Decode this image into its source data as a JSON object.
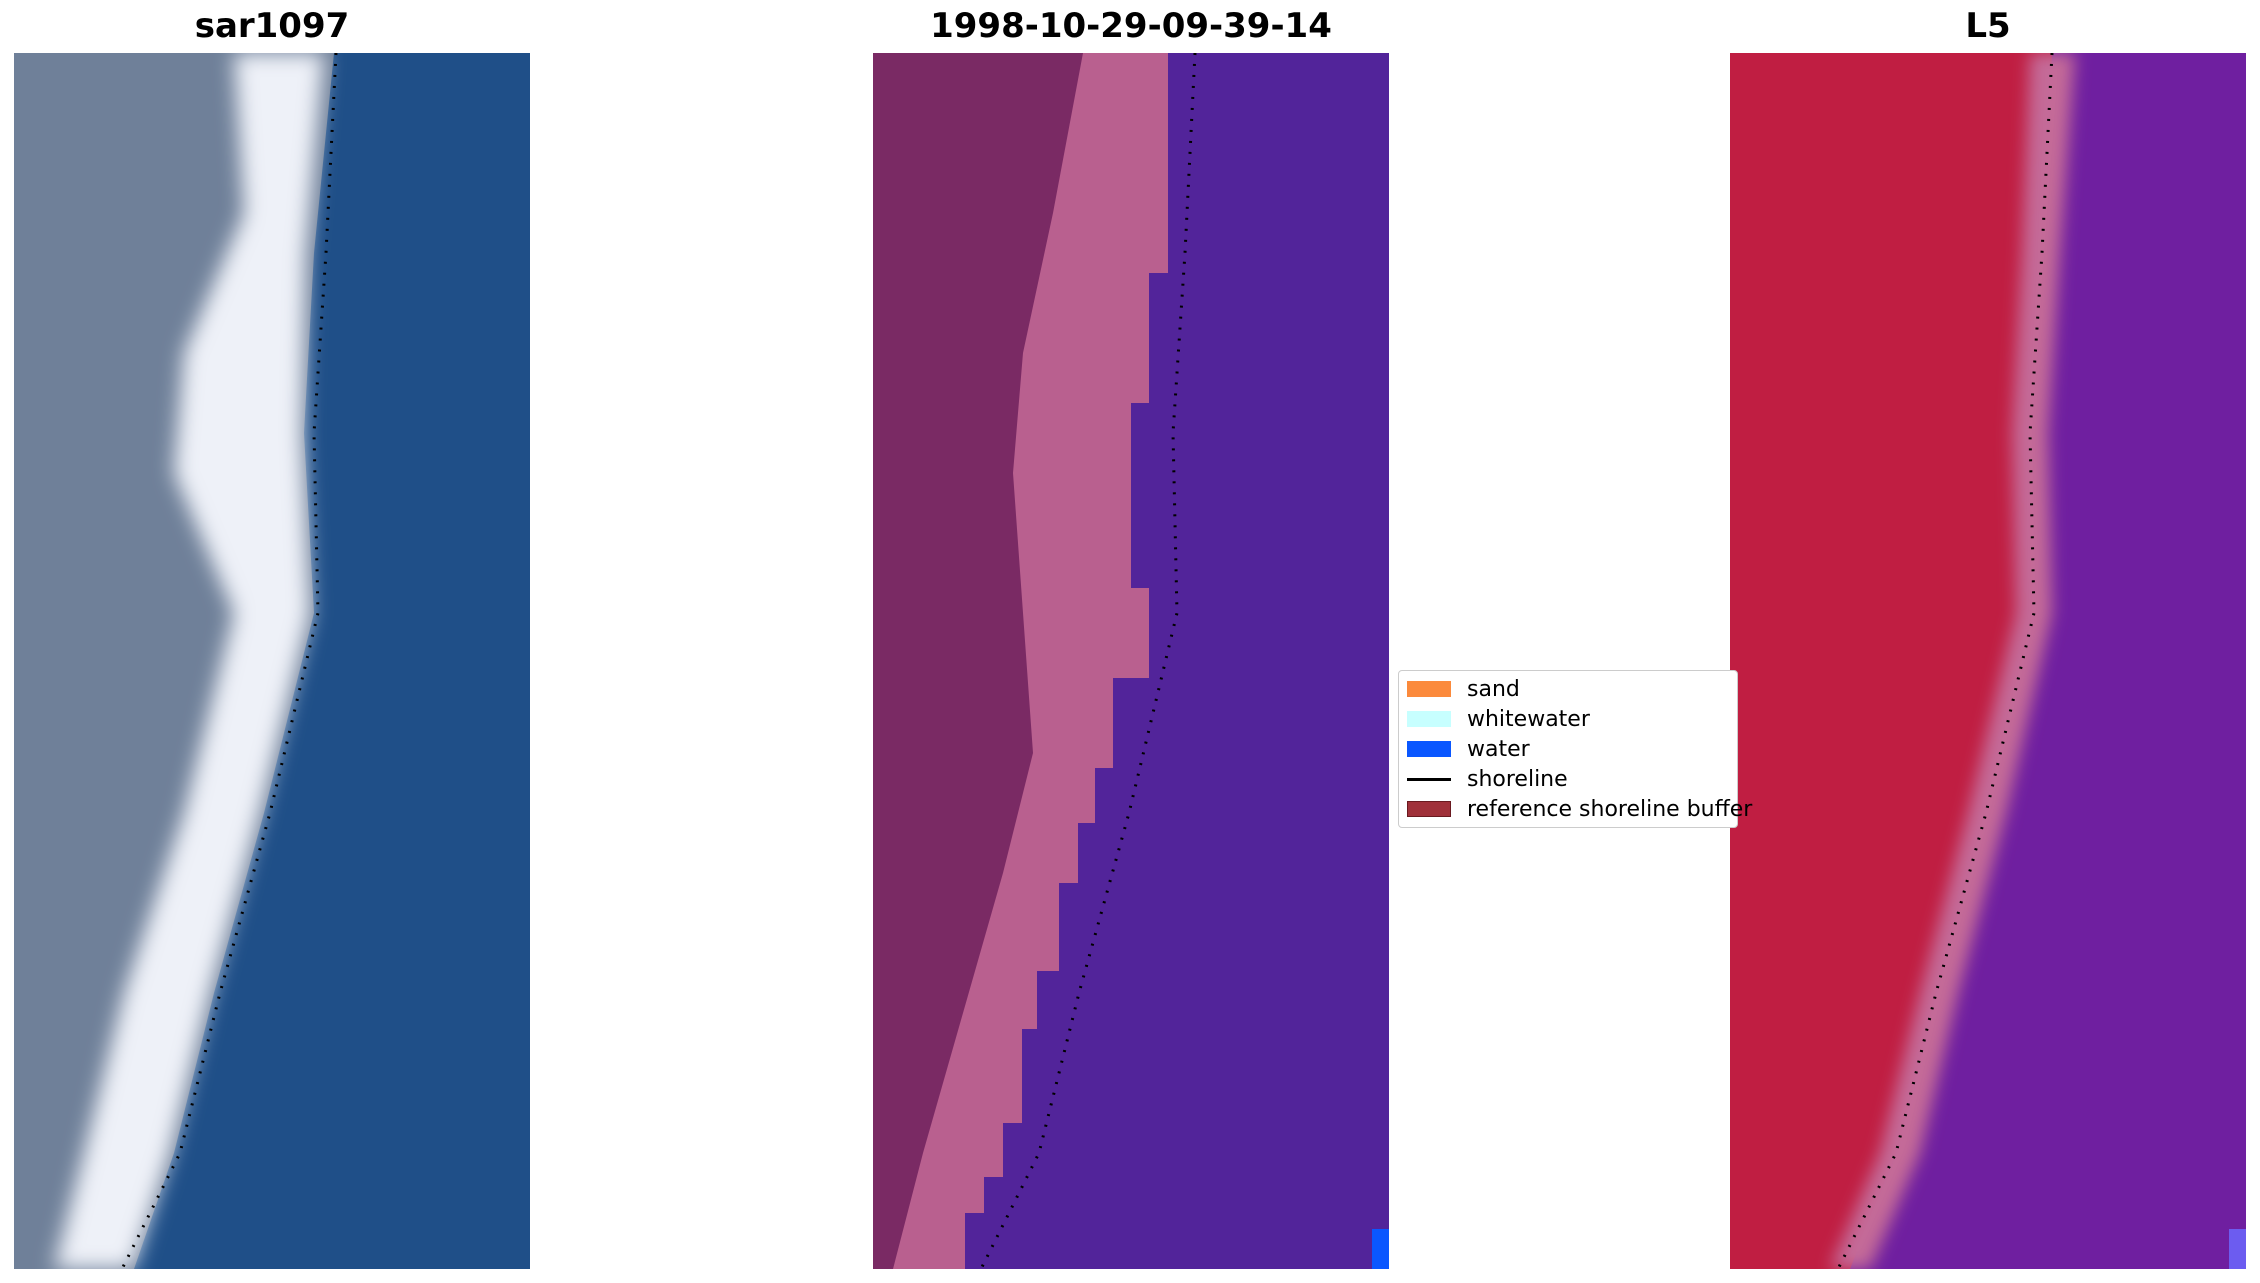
{
  "panels": [
    {
      "title": "sar1097",
      "kind": "rgb-image",
      "shoreline_color": "#000000"
    },
    {
      "title": "1998-10-29-09-39-14",
      "kind": "classified-image",
      "shoreline_color": "#000000"
    },
    {
      "title": "L5",
      "kind": "index-image",
      "shoreline_color": "#000000"
    }
  ],
  "legend": {
    "items": [
      {
        "label": "sand",
        "type": "patch",
        "color": "#fb8a3c"
      },
      {
        "label": "whitewater",
        "type": "patch",
        "color": "#c7ffff"
      },
      {
        "label": "water",
        "type": "patch",
        "color": "#0a57ff"
      },
      {
        "label": "shoreline",
        "type": "line",
        "color": "#000000"
      },
      {
        "label": "reference shoreline buffer",
        "type": "patch",
        "color": "#a0313a"
      }
    ]
  },
  "colors": {
    "rgb_land": "#6b7f98",
    "rgb_beach": "#e8ecf5",
    "rgb_water": "#1f5a93",
    "class_land": "#7a2a64",
    "class_buffer": "#b9608f",
    "class_water": "#52249a",
    "class_water_label": "#0a57ff",
    "index_land": "#c01e42",
    "index_water": "#6f1fa0"
  }
}
